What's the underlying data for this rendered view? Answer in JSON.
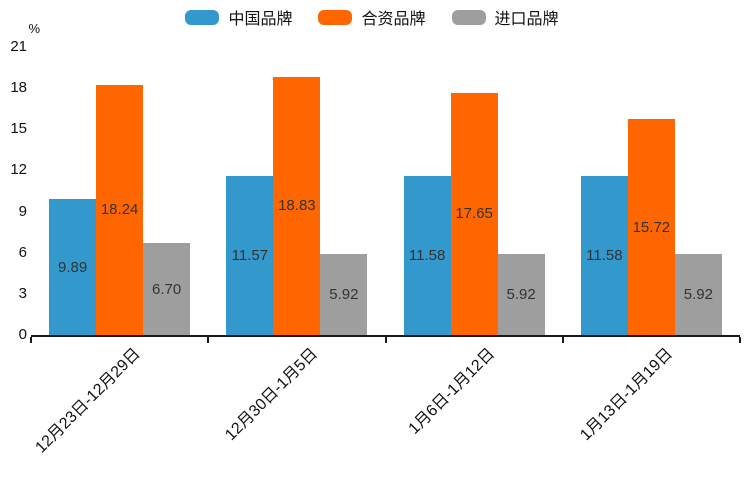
{
  "chart_data": {
    "type": "bar",
    "title": "",
    "ylabel": "%",
    "xlabel": "",
    "categories": [
      "12月23日-12月29日",
      "12月30日-1月5日",
      "1月6日-1月12日",
      "1月13日-1月19日"
    ],
    "series": [
      {
        "name": "中国品牌",
        "color": "#3398CC",
        "values": [
          9.89,
          11.57,
          11.58,
          11.58
        ]
      },
      {
        "name": "合资品牌",
        "color": "#FF6600",
        "values": [
          18.24,
          18.83,
          17.65,
          15.72
        ]
      },
      {
        "name": "进口品牌",
        "color": "#9E9E9E",
        "values": [
          6.7,
          5.92,
          5.92,
          5.92
        ]
      }
    ],
    "y_ticks": [
      0,
      3,
      6,
      9,
      12,
      15,
      18,
      21
    ],
    "ylim": [
      0,
      21
    ],
    "grid": false,
    "legend_position": "top",
    "value_labels": "inside-center",
    "value_label_decimals": 2,
    "axis_color": "#1a1a1a",
    "value_label_color": "#333333",
    "tick_label_color": "#111111"
  }
}
